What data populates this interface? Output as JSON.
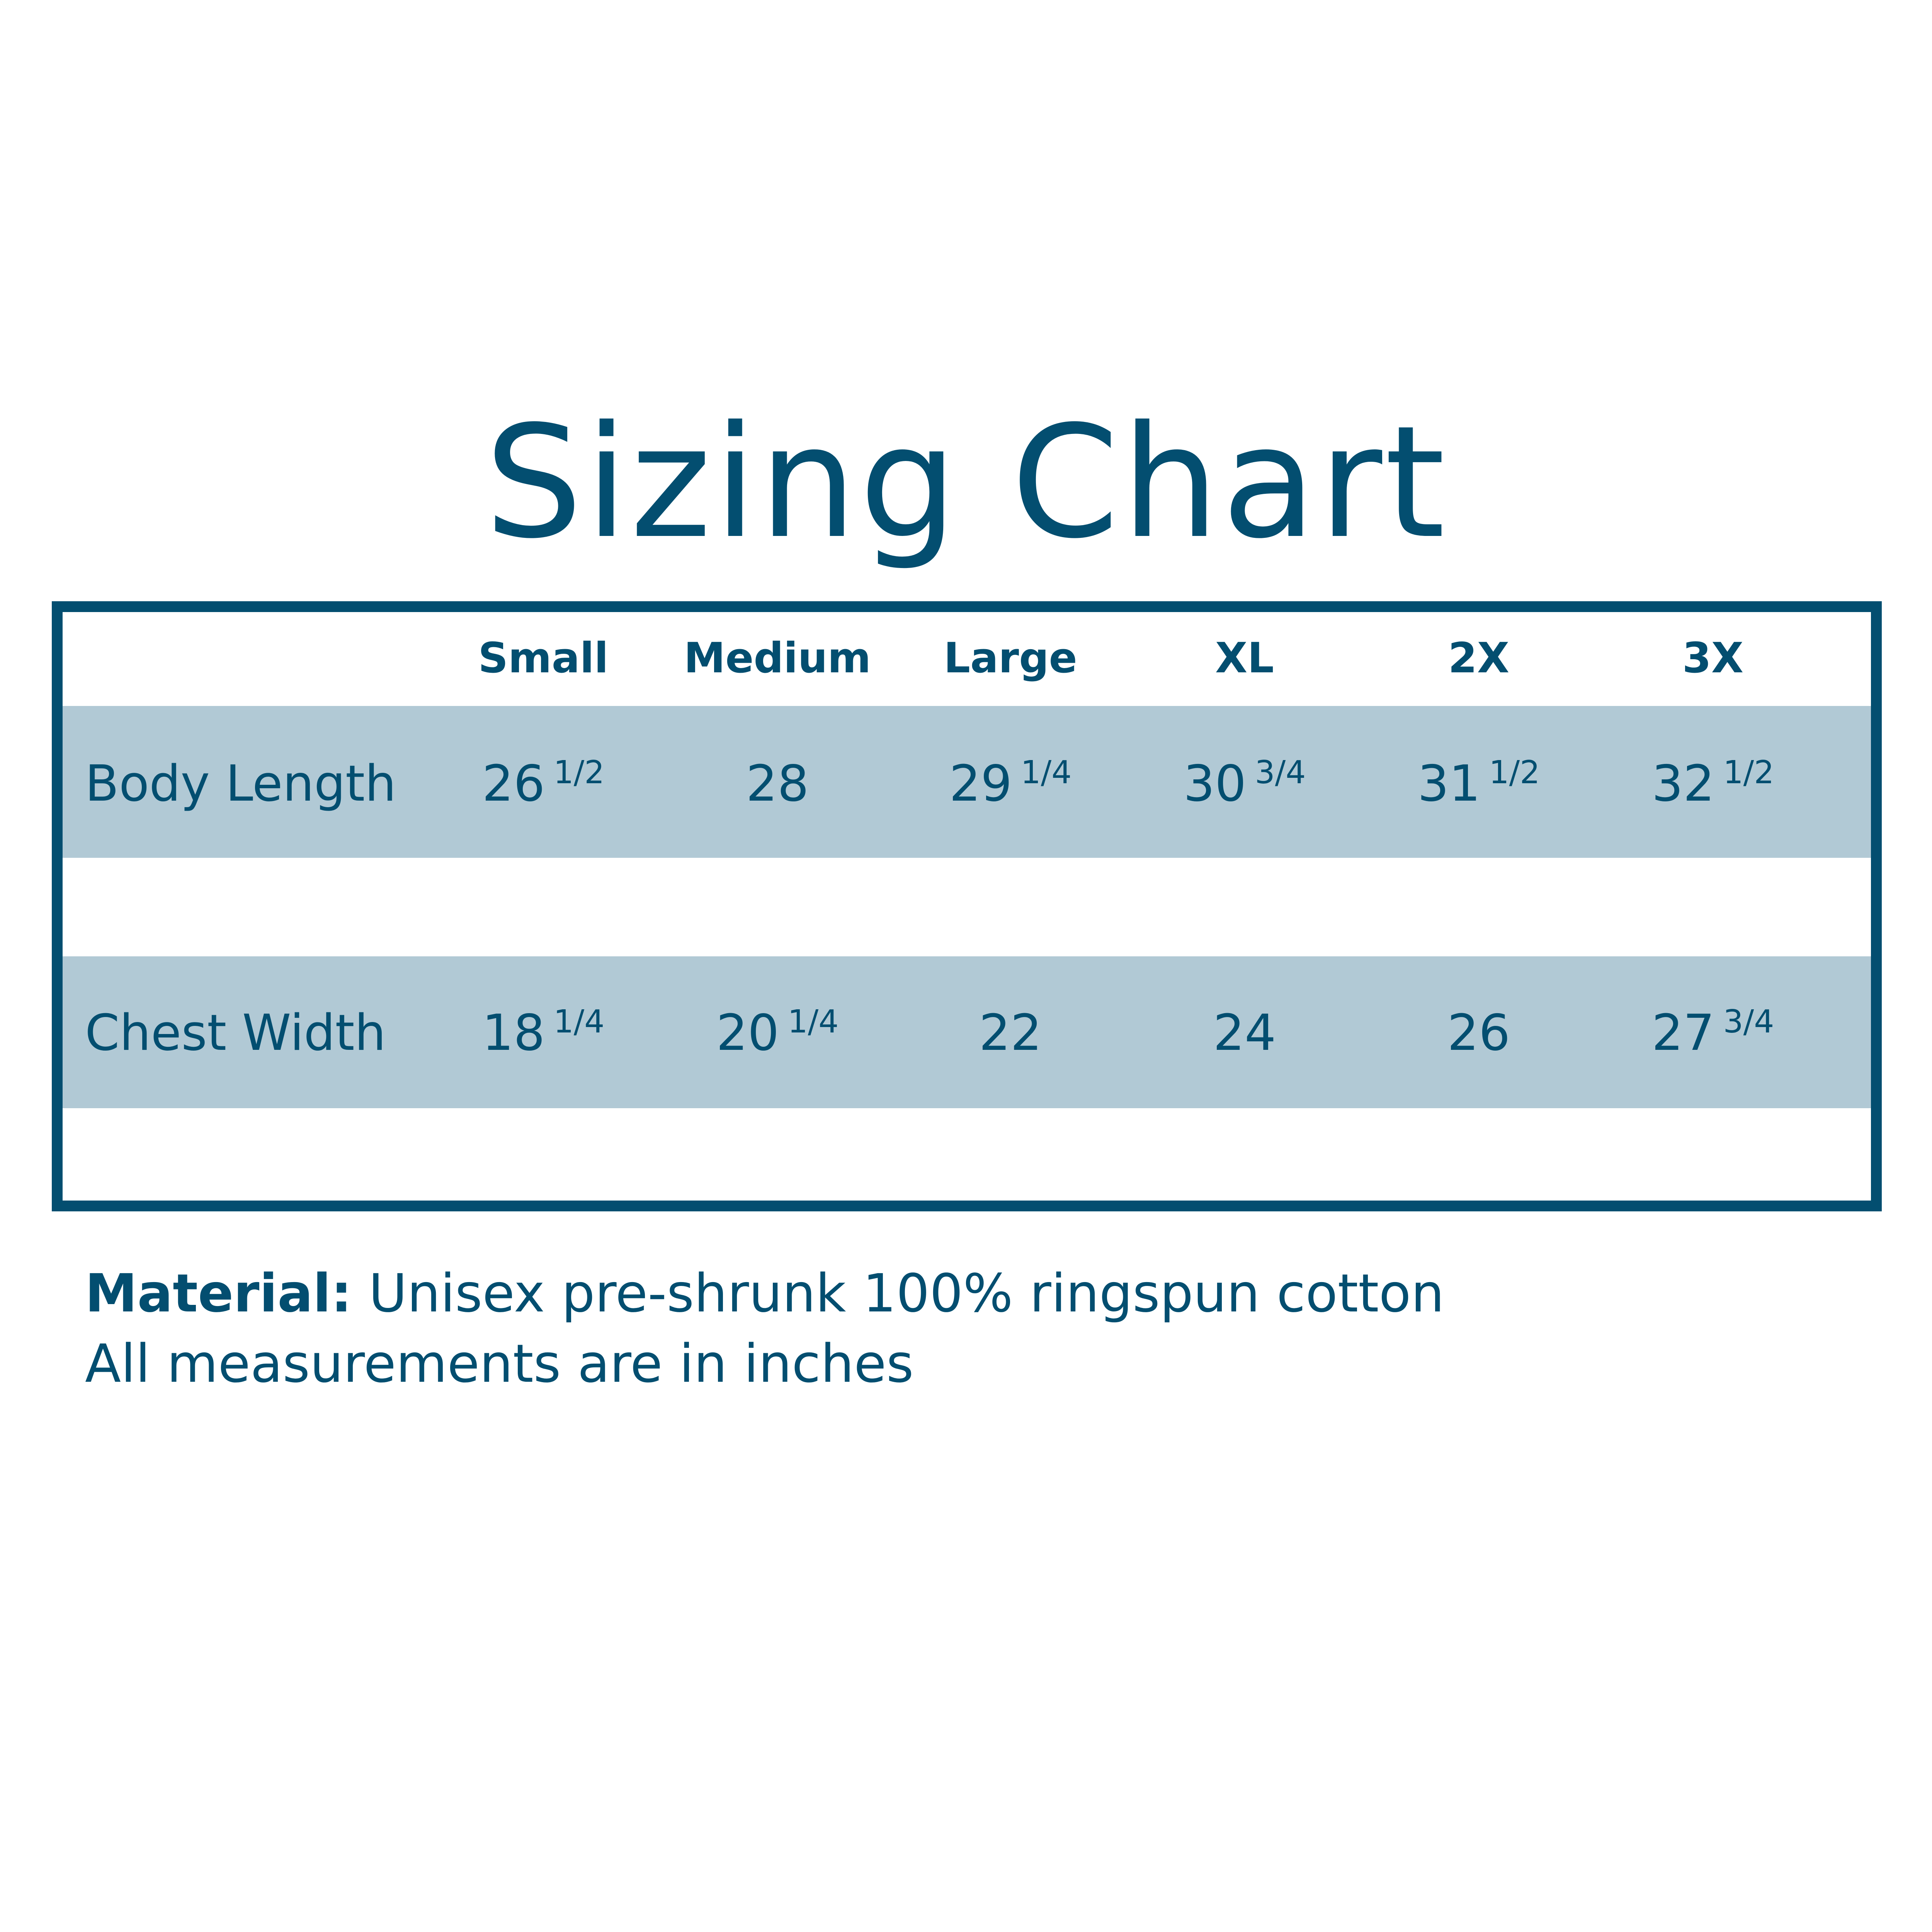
{
  "chart_data": {
    "type": "table",
    "title": "Sizing Chart",
    "columns": [
      "Small",
      "Medium",
      "Large",
      "XL",
      "2X",
      "3X"
    ],
    "rows": [
      {
        "label": "Body Length",
        "values": [
          [
            "26",
            "1/2"
          ],
          [
            "28",
            ""
          ],
          [
            "29",
            "1/4"
          ],
          [
            "30",
            "3/4"
          ],
          [
            "31",
            "1/2"
          ],
          [
            "32",
            "1/2"
          ]
        ]
      },
      {
        "label": "Chest Width",
        "values": [
          [
            "18",
            "1/4"
          ],
          [
            "20",
            "1/4"
          ],
          [
            "22",
            ""
          ],
          [
            "24",
            ""
          ],
          [
            "26",
            ""
          ],
          [
            "27",
            "3/4"
          ]
        ]
      }
    ]
  },
  "footer": {
    "material_label": "Material:",
    "material_text": "Unisex pre-shrunk 100% ringspun cotton",
    "units_note": "All measurements are in inches"
  },
  "colors": {
    "primary": "#034E70",
    "band": "#B1C9D5",
    "background": "#FFFFFF"
  }
}
